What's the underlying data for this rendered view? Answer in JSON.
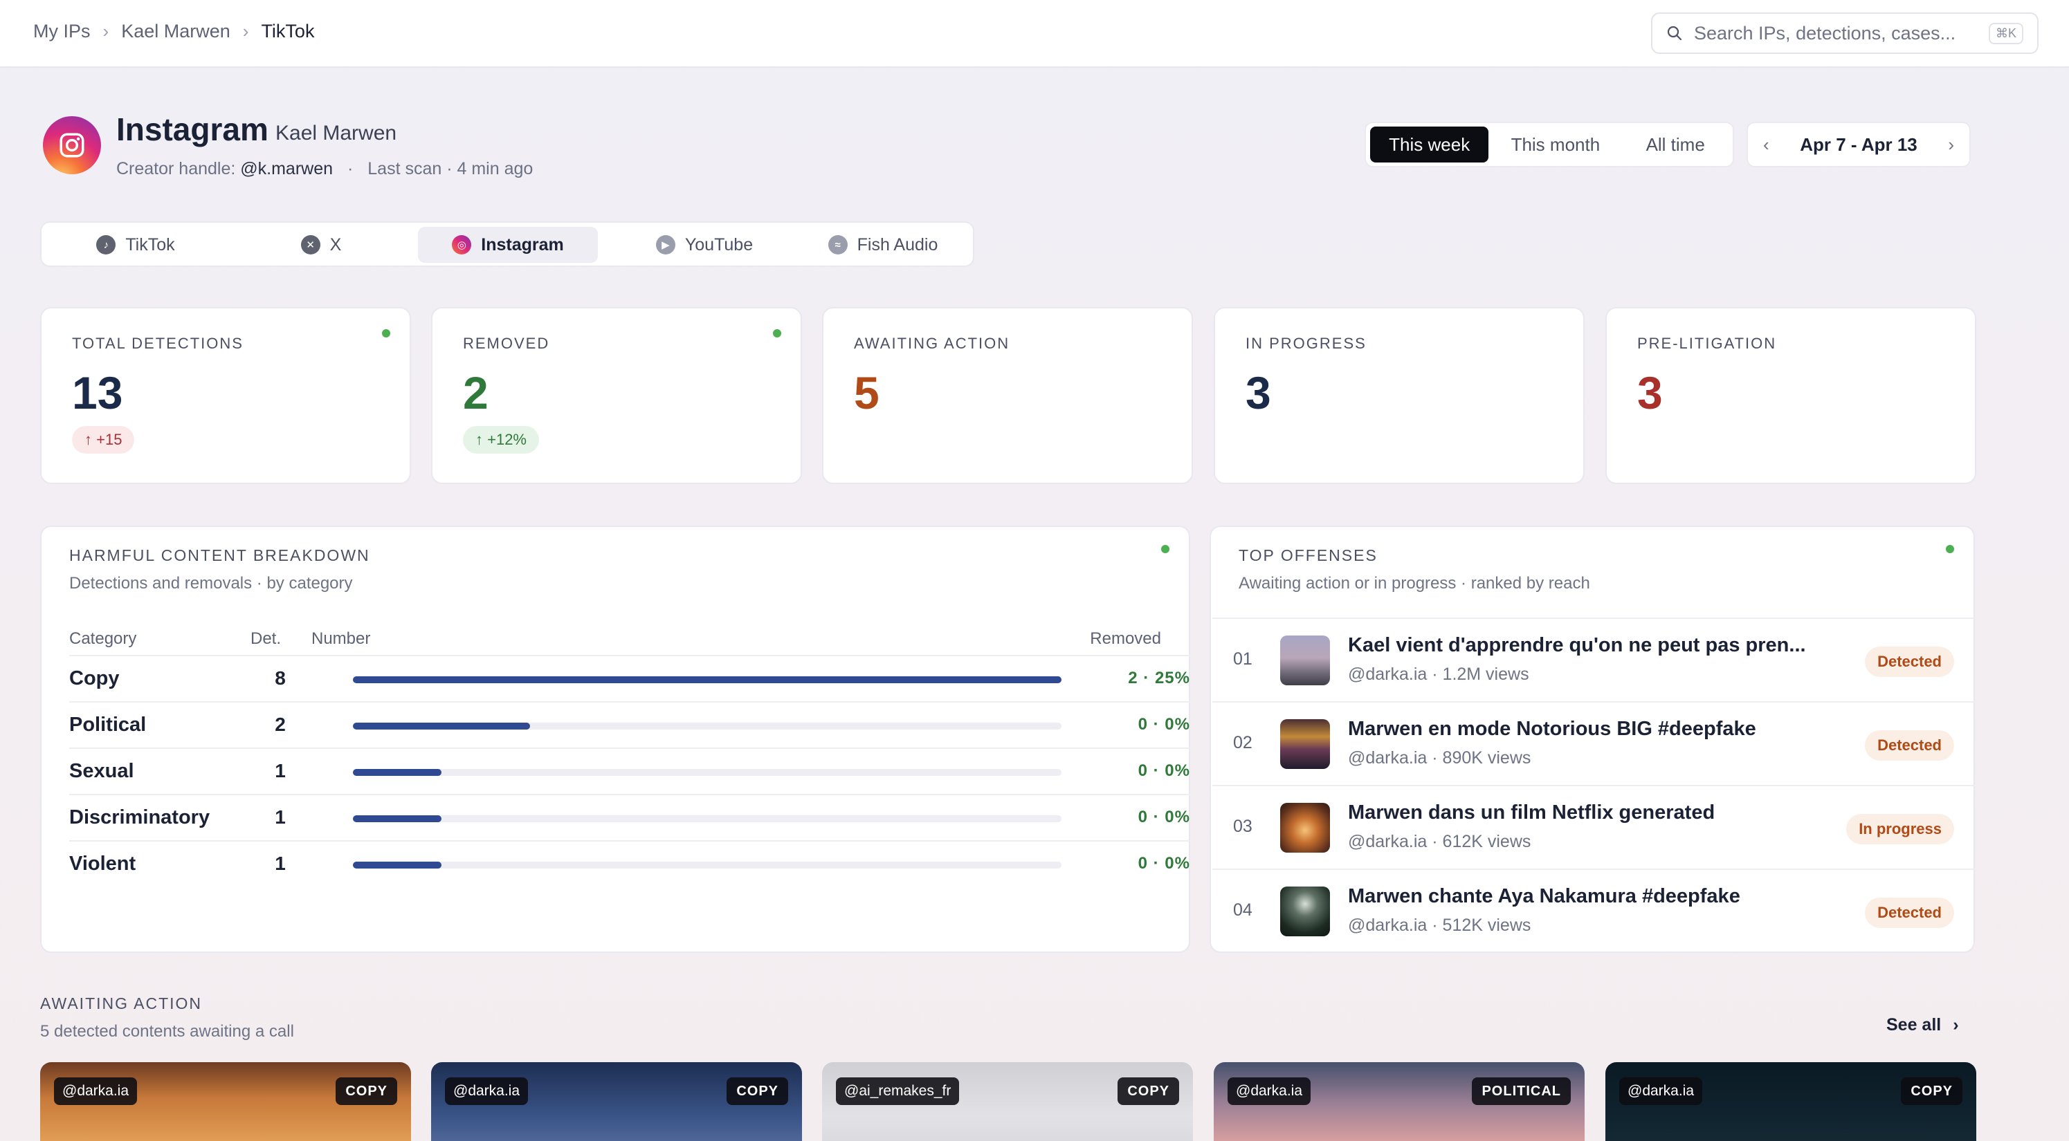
{
  "breadcrumb": [
    "My IPs",
    "Kael Marwen",
    "TikTok"
  ],
  "search": {
    "placeholder": "Search IPs, detections, cases...",
    "shortcut": "⌘K"
  },
  "header": {
    "title": "Instagram",
    "owner": "Kael Marwen",
    "handle_label": "Creator handle:",
    "handle": "@k.marwen",
    "last_scan": "Last scan · 4 min ago"
  },
  "range": {
    "tabs": [
      "This week",
      "This month",
      "All time"
    ],
    "active": "This week",
    "date_label": "Apr 7 - Apr 13"
  },
  "platform_tabs": [
    {
      "label": "TikTok",
      "icon": "tiktok-icon",
      "color": "#5f6370"
    },
    {
      "label": "X",
      "icon": "x-icon",
      "color": "#5f6370"
    },
    {
      "label": "Instagram",
      "icon": "instagram-icon",
      "color": "#dd2a7b",
      "active": true
    },
    {
      "label": "YouTube",
      "icon": "youtube-icon",
      "color": "#9a9dab"
    },
    {
      "label": "Fish Audio",
      "icon": "fish-audio-icon",
      "color": "#9a9dab"
    }
  ],
  "stats": [
    {
      "label": "TOTAL DETECTIONS",
      "value": "13",
      "color": "#1c2a4a",
      "badge": "↑ +15",
      "badge_bg": "#fbe9ea",
      "badge_color": "#a8323a",
      "live": true
    },
    {
      "label": "REMOVED",
      "value": "2",
      "color": "#2f7a3a",
      "badge": "↑ +12%",
      "badge_bg": "#e6f3e7",
      "badge_color": "#2f7a3a",
      "live": true
    },
    {
      "label": "AWAITING ACTION",
      "value": "5",
      "color": "#b04a17"
    },
    {
      "label": "IN PROGRESS",
      "value": "3",
      "color": "#1c2a4a"
    },
    {
      "label": "PRE-LITIGATION",
      "value": "3",
      "color": "#a8302a"
    }
  ],
  "breakdown": {
    "title": "HARMFUL CONTENT BREAKDOWN",
    "subtitle": "Detections and removals · by category",
    "headers": {
      "category": "Category",
      "det": "Det.",
      "number": "Number",
      "removed": "Removed"
    },
    "rows": [
      {
        "category": "Copy",
        "det": "8",
        "fraction": 1.0,
        "removed": "2 · 25%"
      },
      {
        "category": "Political",
        "det": "2",
        "fraction": 0.25,
        "removed": "0 · 0%"
      },
      {
        "category": "Sexual",
        "det": "1",
        "fraction": 0.125,
        "removed": "0 · 0%"
      },
      {
        "category": "Discriminatory",
        "det": "1",
        "fraction": 0.125,
        "removed": "0 · 0%"
      },
      {
        "category": "Violent",
        "det": "1",
        "fraction": 0.125,
        "removed": "0 · 0%"
      }
    ]
  },
  "offenses": {
    "title": "TOP OFFENSES",
    "subtitle": "Awaiting action or in progress · ranked by reach",
    "items": [
      {
        "rank": "01",
        "title": "Kael vient d'apprendre qu'on ne peut pas pren...",
        "meta": "@darka.ia · 1.2M views",
        "status": "Detected"
      },
      {
        "rank": "02",
        "title": "Marwen en mode Notorious BIG #deepfake",
        "meta": "@darka.ia · 890K views",
        "status": "Detected"
      },
      {
        "rank": "03",
        "title": "Marwen dans un film Netflix generated",
        "meta": "@darka.ia · 612K views",
        "status": "In progress"
      },
      {
        "rank": "04",
        "title": "Marwen chante Aya Nakamura #deepfake",
        "meta": "@darka.ia · 512K views",
        "status": "Detected"
      }
    ]
  },
  "awaiting": {
    "title": "AWAITING ACTION",
    "subtitle": "5 detected contents awaiting a call",
    "see_all": "See all",
    "cards": [
      {
        "handle": "@darka.ia",
        "tag": "COPY"
      },
      {
        "handle": "@darka.ia",
        "tag": "COPY"
      },
      {
        "handle": "@ai_remakes_fr",
        "tag": "COPY"
      },
      {
        "handle": "@darka.ia",
        "tag": "POLITICAL"
      },
      {
        "handle": "@darka.ia",
        "tag": "COPY"
      }
    ]
  }
}
